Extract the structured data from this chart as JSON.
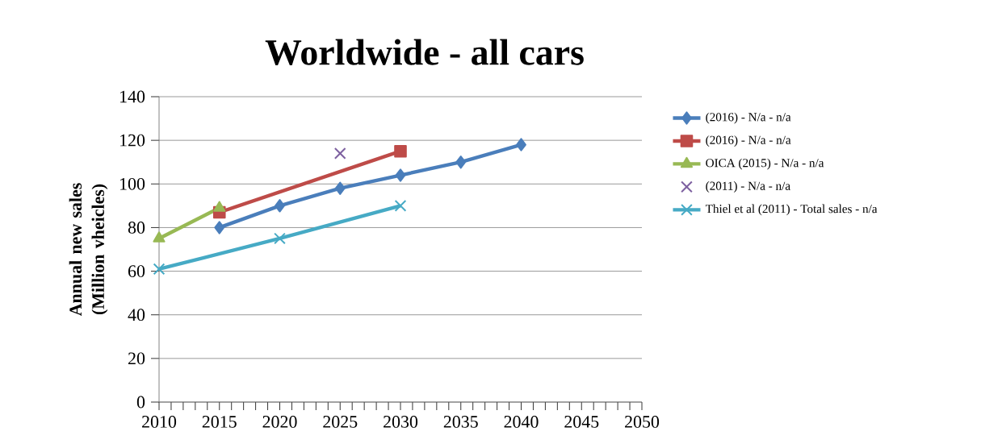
{
  "chart_data": {
    "type": "line",
    "title": "Worldwide - all cars",
    "ylabel": "Annual new sales (Million vheicles)",
    "xlim": [
      2010,
      2050
    ],
    "xticks": [
      2010,
      2015,
      2020,
      2025,
      2030,
      2035,
      2040,
      2045,
      2050
    ],
    "ylim": [
      0,
      140
    ],
    "yticks": [
      0,
      20,
      40,
      60,
      80,
      100,
      120,
      140
    ],
    "grid": "y",
    "legend": "right",
    "series": [
      {
        "name": "(2016) - N/a - n/a",
        "color": "#4a7ebb",
        "marker": "diamond",
        "x": [
          2015,
          2020,
          2025,
          2030,
          2035,
          2040
        ],
        "values": [
          80,
          90,
          98,
          104,
          110,
          118
        ]
      },
      {
        "name": "(2016) - N/a - n/a",
        "color": "#be4b48",
        "marker": "square",
        "x": [
          2015,
          2030
        ],
        "values": [
          87,
          115
        ]
      },
      {
        "name": "OICA (2015) - N/a - n/a",
        "color": "#98b954",
        "marker": "triangle",
        "x": [
          2010,
          2015
        ],
        "values": [
          75,
          89
        ]
      },
      {
        "name": "(2011) - N/a - n/a",
        "color": "#7d60a0",
        "marker": "cross",
        "type": "scatter",
        "x": [
          2025
        ],
        "values": [
          114
        ]
      },
      {
        "name": "Thiel et al (2011) - Total sales - n/a",
        "color": "#46aac5",
        "marker": "cross",
        "x": [
          2010,
          2020,
          2030
        ],
        "values": [
          61,
          75,
          90
        ]
      }
    ]
  }
}
